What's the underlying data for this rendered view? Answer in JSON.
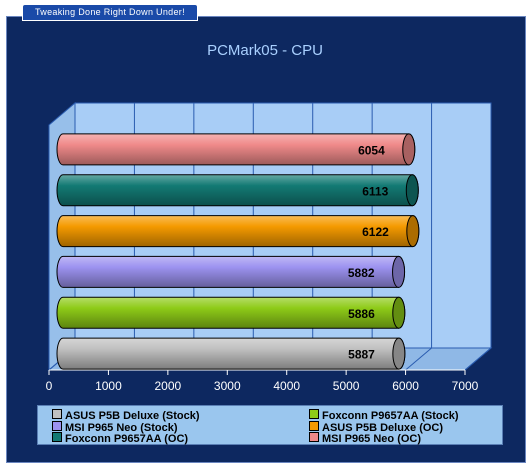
{
  "header": {
    "tagline": "Tweaking Done Right Down Under!"
  },
  "colors": {
    "background": "#0d2860",
    "plot_back": "#a8cdf6",
    "legend_back": "#9ac6ee",
    "title": "#a9d0ff",
    "axis_text": "#ffffff"
  },
  "chart_data": {
    "type": "bar",
    "orientation": "horizontal",
    "title": "PCMark05 - CPU",
    "xlabel": "",
    "ylabel": "",
    "xlim": [
      0,
      7000
    ],
    "x_ticks": [
      0,
      1000,
      2000,
      3000,
      4000,
      5000,
      6000,
      7000
    ],
    "grid": true,
    "legend_position": "bottom",
    "series": [
      {
        "name": "MSI P965 Neo (OC)",
        "value": 6054,
        "color": "#f08a8a"
      },
      {
        "name": "Foxconn P9657AA (OC)",
        "value": 6113,
        "color": "#137a74"
      },
      {
        "name": "ASUS P5B Deluxe (OC)",
        "value": 6122,
        "color": "#f59a00"
      },
      {
        "name": "MSI P965 Neo (Stock)",
        "value": 5882,
        "color": "#9c92f0"
      },
      {
        "name": "Foxconn P9657AA (Stock)",
        "value": 5886,
        "color": "#8ecb18"
      },
      {
        "name": "ASUS P5B Deluxe (Stock)",
        "value": 5887,
        "color": "#c0c0c0"
      }
    ],
    "legend_order": [
      "ASUS P5B Deluxe (Stock)",
      "Foxconn P9657AA (Stock)",
      "MSI P965 Neo (Stock)",
      "ASUS P5B Deluxe (OC)",
      "Foxconn P9657AA (OC)",
      "MSI P965 Neo (OC)"
    ]
  }
}
